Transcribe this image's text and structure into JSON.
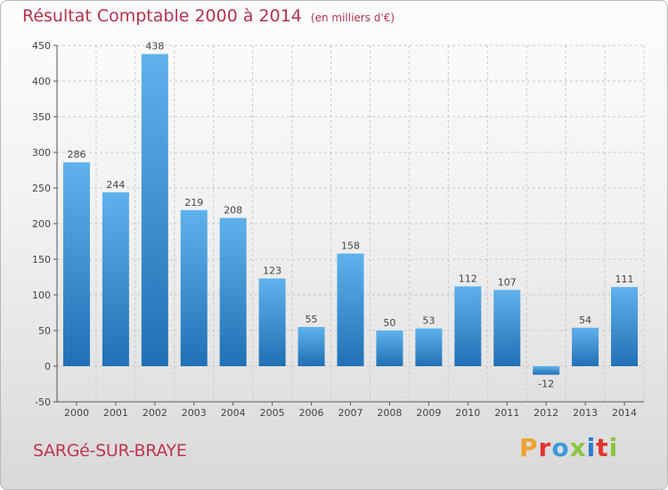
{
  "title": "Résultat Comptable 2000 à 2014",
  "subtitle": "(en milliers d'€)",
  "place": "SARGé-SUR-BRAYE",
  "logo": {
    "letters": [
      "P",
      "r",
      "o",
      "x",
      "i",
      "t",
      "i"
    ],
    "colors": [
      "#f0a22e",
      "#e3342f",
      "#3a9ad9",
      "#8cc63f",
      "#2b7ccf",
      "#e3342f",
      "#8cc63f"
    ]
  },
  "chart_data": {
    "type": "bar",
    "title": "Résultat Comptable 2000 à 2014",
    "subtitle": "(en milliers d'€)",
    "categories": [
      "2000",
      "2001",
      "2002",
      "2003",
      "2004",
      "2005",
      "2006",
      "2007",
      "2008",
      "2009",
      "2010",
      "2011",
      "2012",
      "2013",
      "2014"
    ],
    "values": [
      286,
      244,
      438,
      219,
      208,
      123,
      55,
      158,
      50,
      53,
      112,
      107,
      -12,
      54,
      111
    ],
    "data_labels": [
      "286",
      "244",
      "438",
      "219",
      "208",
      "123",
      "55",
      "158",
      "50",
      "53",
      "112",
      "107",
      "-12",
      "54",
      "111"
    ],
    "ylim": [
      -50,
      450
    ],
    "yticks": [
      -50,
      0,
      50,
      100,
      150,
      200,
      250,
      300,
      350,
      400,
      450
    ],
    "grid": true,
    "bar_color": "#3d93d8"
  }
}
